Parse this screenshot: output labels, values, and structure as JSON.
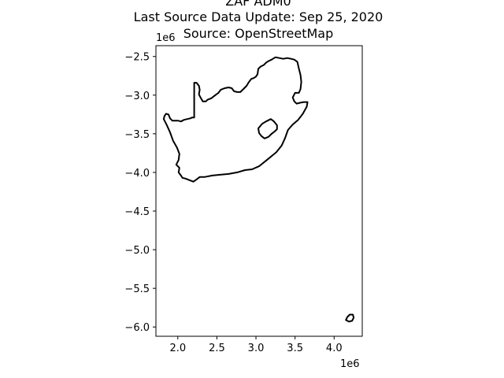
{
  "title": {
    "line1": "ZAF ADM0",
    "line2": "Last Source Data Update: Sep 25, 2020",
    "line3": "Source: OpenStreetMap"
  },
  "axes": {
    "x_offset_label": "1e6",
    "y_offset_label": "1e6",
    "x_ticks": [
      {
        "value": 2.0,
        "label": "2.0"
      },
      {
        "value": 2.5,
        "label": "2.5"
      },
      {
        "value": 3.0,
        "label": "3.0"
      },
      {
        "value": 3.5,
        "label": "3.5"
      },
      {
        "value": 4.0,
        "label": "4.0"
      }
    ],
    "y_ticks": [
      {
        "value": -2.5,
        "label": "−2.5"
      },
      {
        "value": -3.0,
        "label": "−3.0"
      },
      {
        "value": -3.5,
        "label": "−3.5"
      },
      {
        "value": -4.0,
        "label": "−4.0"
      },
      {
        "value": -4.5,
        "label": "−4.5"
      },
      {
        "value": -5.0,
        "label": "−5.0"
      },
      {
        "value": -5.5,
        "label": "−5.5"
      },
      {
        "value": -6.0,
        "label": "−6.0"
      }
    ],
    "xlim": [
      1.72,
      4.36
    ],
    "ylim": [
      -6.12,
      -2.36
    ]
  },
  "map_data": {
    "boundary_color": "#000000",
    "features": [
      {
        "name": "mainland",
        "coords": [
          [
            1.82,
            -3.31
          ],
          [
            1.83,
            -3.27
          ],
          [
            1.85,
            -3.24
          ],
          [
            1.88,
            -3.25
          ],
          [
            1.9,
            -3.3
          ],
          [
            1.93,
            -3.33
          ],
          [
            1.96,
            -3.33
          ],
          [
            2.0,
            -3.33
          ],
          [
            2.04,
            -3.34
          ],
          [
            2.08,
            -3.32
          ],
          [
            2.12,
            -3.31
          ],
          [
            2.16,
            -3.3
          ],
          [
            2.18,
            -3.29
          ],
          [
            2.21,
            -3.29
          ],
          [
            2.21,
            -2.84
          ],
          [
            2.24,
            -2.84
          ],
          [
            2.27,
            -2.88
          ],
          [
            2.28,
            -2.93
          ],
          [
            2.27,
            -2.99
          ],
          [
            2.29,
            -3.03
          ],
          [
            2.32,
            -3.08
          ],
          [
            2.36,
            -3.08
          ],
          [
            2.38,
            -3.06
          ],
          [
            2.43,
            -3.04
          ],
          [
            2.48,
            -3.0
          ],
          [
            2.52,
            -2.97
          ],
          [
            2.55,
            -2.93
          ],
          [
            2.6,
            -2.91
          ],
          [
            2.65,
            -2.9
          ],
          [
            2.69,
            -2.91
          ],
          [
            2.72,
            -2.95
          ],
          [
            2.76,
            -2.96
          ],
          [
            2.8,
            -2.96
          ],
          [
            2.84,
            -2.92
          ],
          [
            2.88,
            -2.88
          ],
          [
            2.91,
            -2.83
          ],
          [
            2.94,
            -2.79
          ],
          [
            2.97,
            -2.78
          ],
          [
            3.0,
            -2.76
          ],
          [
            3.02,
            -2.73
          ],
          [
            3.03,
            -2.66
          ],
          [
            3.06,
            -2.63
          ],
          [
            3.1,
            -2.61
          ],
          [
            3.13,
            -2.58
          ],
          [
            3.16,
            -2.56
          ],
          [
            3.2,
            -2.54
          ],
          [
            3.25,
            -2.51
          ],
          [
            3.3,
            -2.52
          ],
          [
            3.35,
            -2.53
          ],
          [
            3.4,
            -2.52
          ],
          [
            3.45,
            -2.53
          ],
          [
            3.49,
            -2.54
          ],
          [
            3.53,
            -2.57
          ],
          [
            3.55,
            -2.66
          ],
          [
            3.57,
            -2.74
          ],
          [
            3.58,
            -2.83
          ],
          [
            3.57,
            -2.92
          ],
          [
            3.55,
            -2.97
          ],
          [
            3.5,
            -2.97
          ],
          [
            3.47,
            -3.03
          ],
          [
            3.49,
            -3.08
          ],
          [
            3.52,
            -3.11
          ],
          [
            3.56,
            -3.1
          ],
          [
            3.61,
            -3.09
          ],
          [
            3.66,
            -3.09
          ],
          [
            3.65,
            -3.15
          ],
          [
            3.6,
            -3.24
          ],
          [
            3.54,
            -3.32
          ],
          [
            3.47,
            -3.38
          ],
          [
            3.41,
            -3.45
          ],
          [
            3.37,
            -3.56
          ],
          [
            3.33,
            -3.65
          ],
          [
            3.26,
            -3.74
          ],
          [
            3.15,
            -3.83
          ],
          [
            3.04,
            -3.92
          ],
          [
            2.95,
            -3.96
          ],
          [
            2.86,
            -3.97
          ],
          [
            2.76,
            -4.0
          ],
          [
            2.65,
            -4.02
          ],
          [
            2.54,
            -4.03
          ],
          [
            2.44,
            -4.04
          ],
          [
            2.34,
            -4.06
          ],
          [
            2.28,
            -4.06
          ],
          [
            2.24,
            -4.09
          ],
          [
            2.2,
            -4.12
          ],
          [
            2.15,
            -4.1
          ],
          [
            2.1,
            -4.08
          ],
          [
            2.06,
            -4.07
          ],
          [
            2.04,
            -4.04
          ],
          [
            2.01,
            -4.0
          ],
          [
            2.02,
            -3.94
          ],
          [
            1.98,
            -3.9
          ],
          [
            2.01,
            -3.84
          ],
          [
            2.02,
            -3.76
          ],
          [
            1.99,
            -3.68
          ],
          [
            1.94,
            -3.59
          ],
          [
            1.9,
            -3.48
          ],
          [
            1.86,
            -3.39
          ],
          [
            1.82,
            -3.31
          ]
        ]
      },
      {
        "name": "lesotho",
        "coords": [
          [
            3.03,
            -3.43
          ],
          [
            3.08,
            -3.37
          ],
          [
            3.13,
            -3.34
          ],
          [
            3.19,
            -3.31
          ],
          [
            3.23,
            -3.34
          ],
          [
            3.27,
            -3.39
          ],
          [
            3.27,
            -3.44
          ],
          [
            3.24,
            -3.47
          ],
          [
            3.2,
            -3.5
          ],
          [
            3.16,
            -3.54
          ],
          [
            3.11,
            -3.56
          ],
          [
            3.07,
            -3.53
          ],
          [
            3.04,
            -3.49
          ],
          [
            3.03,
            -3.43
          ]
        ]
      },
      {
        "name": "prince-edward-islands",
        "coords": [
          [
            4.15,
            -5.91
          ],
          [
            4.17,
            -5.87
          ],
          [
            4.2,
            -5.84
          ],
          [
            4.24,
            -5.84
          ],
          [
            4.25,
            -5.88
          ],
          [
            4.23,
            -5.92
          ],
          [
            4.19,
            -5.93
          ],
          [
            4.15,
            -5.91
          ]
        ]
      }
    ]
  }
}
